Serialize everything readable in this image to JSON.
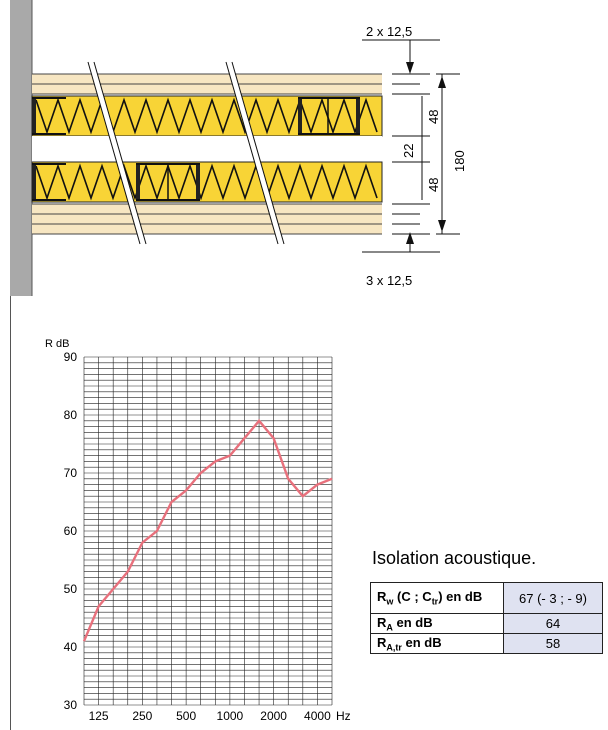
{
  "drawing": {
    "dim_top": "2 x 12,5",
    "dim_bottom": "3 x 12,5",
    "dim_insul_top": "48",
    "dim_gap": "22",
    "dim_insul_bottom": "48",
    "dim_total": "180"
  },
  "chart_data": {
    "type": "line",
    "ylabel": "R dB",
    "xunit": "Hz",
    "ylim": [
      30,
      90
    ],
    "yticks": [
      90,
      80,
      70,
      60,
      50,
      40,
      30
    ],
    "xtick_labels": [
      "125",
      "250",
      "500",
      "1000",
      "2000",
      "4000"
    ],
    "x_freq": [
      100,
      125,
      160,
      200,
      250,
      315,
      400,
      500,
      630,
      800,
      1000,
      1250,
      1600,
      2000,
      2500,
      3150,
      4000,
      5000
    ],
    "series": [
      {
        "values": [
          41,
          47,
          50,
          53,
          58,
          60,
          65,
          67,
          70,
          72,
          73,
          76,
          79,
          76,
          69,
          66,
          68,
          69
        ]
      }
    ],
    "colors": {
      "curve": "#e8707c"
    }
  },
  "table": {
    "caption": "Isolation acoustique.",
    "rows": [
      {
        "k_main": "R",
        "k_sub": "w",
        "k_rest1": " (C ; C",
        "k_sub2": "tr",
        "k_rest2": ") en dB",
        "value": "67 (- 3 ; - 9)"
      },
      {
        "k_main": "R",
        "k_sub": "A",
        "k_rest1": " en dB",
        "value": "64"
      },
      {
        "k_main": "R",
        "k_sub": "A,tr",
        "k_rest1": " en dB",
        "value": "58"
      }
    ]
  },
  "colors": {
    "wall": "#a9a9a9",
    "board": "#f7e6c2",
    "insulation": "#f8d436",
    "header_cell": "#dfe2f1"
  }
}
